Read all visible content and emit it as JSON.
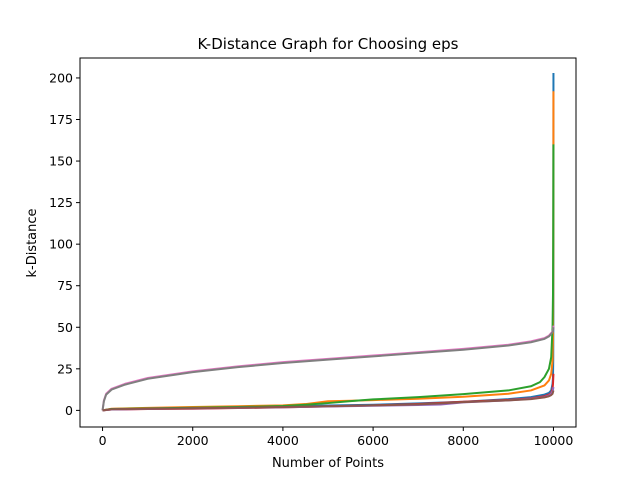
{
  "chart_data": {
    "type": "line",
    "title": "K-Distance Graph for Choosing eps",
    "xlabel": "Number of Points",
    "ylabel": "k-Distance",
    "xlim": [
      -500,
      10500
    ],
    "ylim": [
      -10,
      212
    ],
    "xticks": [
      0,
      2000,
      4000,
      6000,
      8000,
      10000
    ],
    "yticks": [
      0,
      25,
      50,
      75,
      100,
      125,
      150,
      175,
      200
    ],
    "grid": false,
    "legend": null,
    "series": [
      {
        "color": "#1f77b4",
        "x": [
          0,
          200,
          1000,
          2000,
          3000,
          4000,
          5000,
          6000,
          7000,
          8000,
          9000,
          9500,
          9800,
          9900,
          9950,
          9980,
          9990,
          9995,
          9998,
          9999,
          10000
        ],
        "y": [
          0,
          0.8,
          1.2,
          1.6,
          2.0,
          2.4,
          2.9,
          3.4,
          4.2,
          5.2,
          6.8,
          8.0,
          9.5,
          10.5,
          12,
          16,
          20,
          30,
          60,
          120,
          203
        ]
      },
      {
        "color": "#ff7f0e",
        "x": [
          0,
          200,
          1000,
          2000,
          3000,
          4000,
          4500,
          5000,
          5500,
          6000,
          7000,
          8000,
          9000,
          9500,
          9800,
          9900,
          9950,
          9980,
          9990,
          9995,
          9998,
          10000
        ],
        "y": [
          0,
          1.0,
          1.5,
          2.0,
          2.5,
          3.0,
          3.8,
          5.5,
          5.8,
          6.2,
          7.0,
          8.2,
          10.0,
          12.0,
          15.0,
          18.0,
          22.0,
          30.0,
          45.0,
          70.0,
          120.0,
          192
        ]
      },
      {
        "color": "#2ca02c",
        "x": [
          0,
          200,
          1000,
          2000,
          3000,
          4000,
          4500,
          5000,
          5500,
          6000,
          7000,
          8000,
          9000,
          9500,
          9700,
          9800,
          9900,
          9950,
          9980,
          9990,
          9995,
          9998,
          10000
        ],
        "y": [
          0,
          0.8,
          1.2,
          1.6,
          2.0,
          2.6,
          3.4,
          4.4,
          5.6,
          6.6,
          8.0,
          9.8,
          12.0,
          14.5,
          17.0,
          20.0,
          25.0,
          32.0,
          50.0,
          70.0,
          100.0,
          130.0,
          160
        ]
      },
      {
        "color": "#d62728",
        "x": [
          0,
          200,
          1000,
          2000,
          3000,
          4000,
          5000,
          6000,
          7000,
          7500,
          8000,
          9000,
          9500,
          9800,
          9900,
          9950,
          9980,
          9990,
          10000
        ],
        "y": [
          0,
          0.5,
          0.8,
          1.0,
          1.4,
          1.8,
          2.4,
          3.0,
          3.8,
          4.5,
          5.2,
          6.3,
          7.2,
          8.5,
          9.5,
          10.5,
          13.0,
          16.0,
          22
        ]
      },
      {
        "color": "#9467bd",
        "x": [
          0,
          200,
          1000,
          2000,
          3000,
          4000,
          5000,
          6000,
          7000,
          7500,
          8000,
          9000,
          9500,
          9800,
          9900,
          9950,
          9980,
          9990,
          10000
        ],
        "y": [
          0,
          0.5,
          0.9,
          1.2,
          1.5,
          1.9,
          2.3,
          2.8,
          3.2,
          3.5,
          4.8,
          6.0,
          7.0,
          8.0,
          9.0,
          10.0,
          11.5,
          12.5,
          14
        ]
      },
      {
        "color": "#e377c2",
        "x": [
          0,
          30,
          80,
          200,
          500,
          1000,
          2000,
          3000,
          4000,
          5000,
          6000,
          7000,
          8000,
          9000,
          9500,
          9800,
          9900,
          9950,
          9990,
          10000
        ],
        "y": [
          0,
          6,
          10,
          13,
          16,
          19.5,
          23.5,
          26.5,
          29,
          31,
          33,
          35,
          37,
          39.5,
          41.5,
          43.5,
          45,
          46.5,
          48,
          51
        ]
      },
      {
        "color": "#7f7f7f",
        "x": [
          0,
          30,
          80,
          200,
          500,
          1000,
          2000,
          3000,
          4000,
          5000,
          6000,
          7000,
          8000,
          9000,
          9500,
          9800,
          9900,
          9950,
          9990,
          10000
        ],
        "y": [
          0,
          5.5,
          9.5,
          12.5,
          15.5,
          19,
          23,
          26,
          28.5,
          30.5,
          32.5,
          34.5,
          36.5,
          39,
          41,
          43,
          44.5,
          46,
          47.5,
          50
        ]
      },
      {
        "color": "#8c564b",
        "x": [
          0,
          200,
          1000,
          2000,
          3000,
          4000,
          5000,
          6000,
          7000,
          7500,
          8000,
          9000,
          9500,
          9800,
          9900,
          9950,
          9980,
          9990,
          10000
        ],
        "y": [
          0,
          0.7,
          1.0,
          1.3,
          1.6,
          2.0,
          2.5,
          3.0,
          3.6,
          4.2,
          5.0,
          6.0,
          6.8,
          7.8,
          8.5,
          9.2,
          10.0,
          11.0,
          12
        ]
      }
    ]
  }
}
